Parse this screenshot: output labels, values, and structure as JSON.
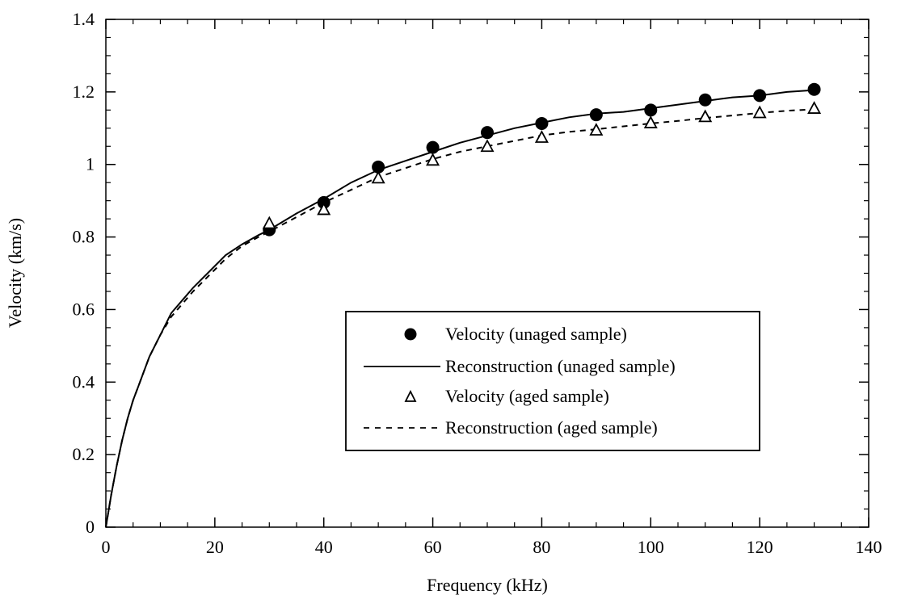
{
  "chart_data": {
    "type": "scatter",
    "title": "",
    "xlabel": "Frequency (kHz)",
    "ylabel": "Velocity (km/s)",
    "xlim": [
      0,
      140
    ],
    "ylim": [
      0,
      1.4
    ],
    "x_ticks": [
      0,
      20,
      40,
      60,
      80,
      100,
      120,
      140
    ],
    "y_ticks": [
      0,
      0.2,
      0.4,
      0.6,
      0.8,
      1,
      1.2,
      1.4
    ],
    "y_tick_labels": [
      "0",
      "0.2",
      "0.4",
      "0.6",
      "0.8",
      "1",
      "1.2",
      "1.4"
    ],
    "grid": false,
    "legend_position": "center-right",
    "series": [
      {
        "name": "Velocity (unaged sample)",
        "kind": "points",
        "marker": "filled-circle",
        "x": [
          30,
          40,
          50,
          60,
          70,
          80,
          90,
          100,
          110,
          120,
          130
        ],
        "y": [
          0.82,
          0.895,
          0.993,
          1.047,
          1.088,
          1.113,
          1.137,
          1.15,
          1.178,
          1.19,
          1.207
        ]
      },
      {
        "name": "Reconstruction (unaged sample)",
        "kind": "line",
        "style": "solid",
        "x": [
          0,
          1,
          2,
          3,
          4,
          5,
          6,
          8,
          10,
          12,
          14,
          16,
          18,
          20,
          22,
          25,
          28,
          30,
          35,
          40,
          45,
          50,
          55,
          60,
          65,
          70,
          75,
          80,
          85,
          90,
          95,
          100,
          105,
          110,
          115,
          120,
          125,
          130
        ],
        "y": [
          0,
          0.09,
          0.17,
          0.24,
          0.3,
          0.35,
          0.39,
          0.47,
          0.53,
          0.59,
          0.625,
          0.66,
          0.69,
          0.72,
          0.75,
          0.78,
          0.805,
          0.82,
          0.865,
          0.905,
          0.95,
          0.985,
          1.01,
          1.035,
          1.06,
          1.08,
          1.1,
          1.115,
          1.13,
          1.14,
          1.145,
          1.155,
          1.165,
          1.175,
          1.185,
          1.19,
          1.2,
          1.205
        ]
      },
      {
        "name": "Velocity (aged sample)",
        "kind": "points",
        "marker": "open-triangle",
        "x": [
          30,
          40,
          50,
          60,
          70,
          80,
          90,
          100,
          110,
          120,
          130
        ],
        "y": [
          0.838,
          0.876,
          0.963,
          1.012,
          1.05,
          1.075,
          1.095,
          1.115,
          1.132,
          1.143,
          1.155
        ]
      },
      {
        "name": "Reconstruction (aged sample)",
        "kind": "line",
        "style": "dashed",
        "x": [
          0,
          1,
          2,
          3,
          4,
          5,
          6,
          8,
          10,
          12,
          14,
          16,
          18,
          20,
          22,
          25,
          28,
          30,
          35,
          40,
          45,
          50,
          55,
          60,
          65,
          70,
          75,
          80,
          85,
          90,
          95,
          100,
          105,
          110,
          115,
          120,
          125,
          130
        ],
        "y": [
          0,
          0.09,
          0.17,
          0.24,
          0.3,
          0.35,
          0.39,
          0.47,
          0.53,
          0.58,
          0.615,
          0.65,
          0.68,
          0.71,
          0.74,
          0.775,
          0.8,
          0.815,
          0.855,
          0.895,
          0.93,
          0.965,
          0.99,
          1.015,
          1.035,
          1.05,
          1.065,
          1.08,
          1.09,
          1.097,
          1.105,
          1.113,
          1.12,
          1.128,
          1.135,
          1.142,
          1.148,
          1.152
        ]
      }
    ]
  }
}
